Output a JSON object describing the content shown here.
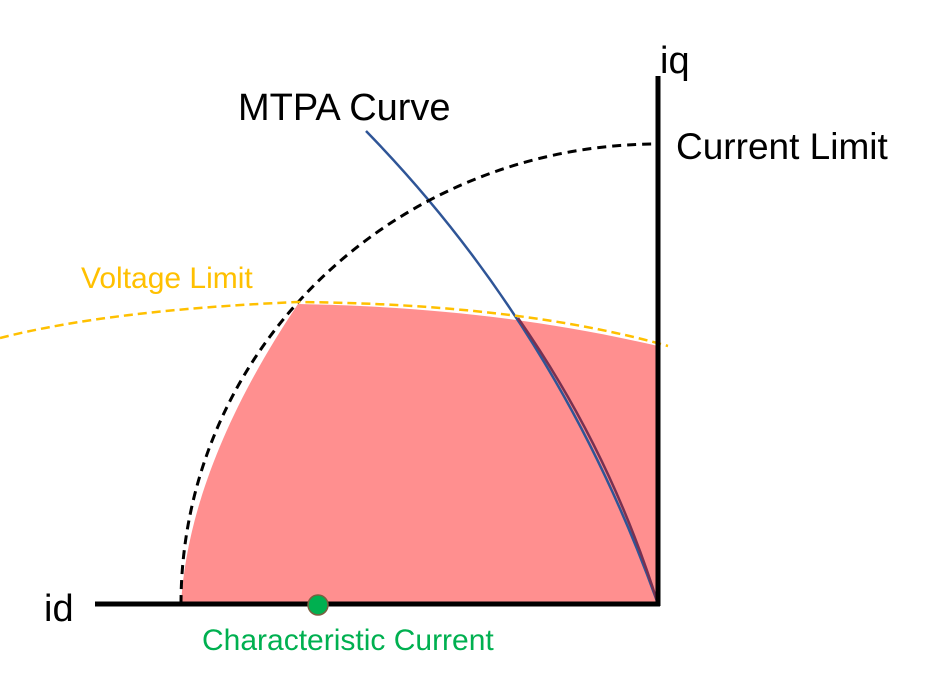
{
  "axes": {
    "q_axis_label": "iq",
    "d_axis_label": "id"
  },
  "labels": {
    "current_limit": "Current Limit",
    "voltage_limit": "Voltage Limit",
    "mtpa_curve": "MTPA Curve",
    "characteristic_current": "Characteristic Current"
  },
  "colors": {
    "axes": "#000000",
    "current_limit": "#000000",
    "voltage_limit": "#FFC000",
    "mtpa_curve": "#2F5597",
    "feasible_region": "#FF8F8F",
    "characteristic_current": "#00B050"
  }
}
